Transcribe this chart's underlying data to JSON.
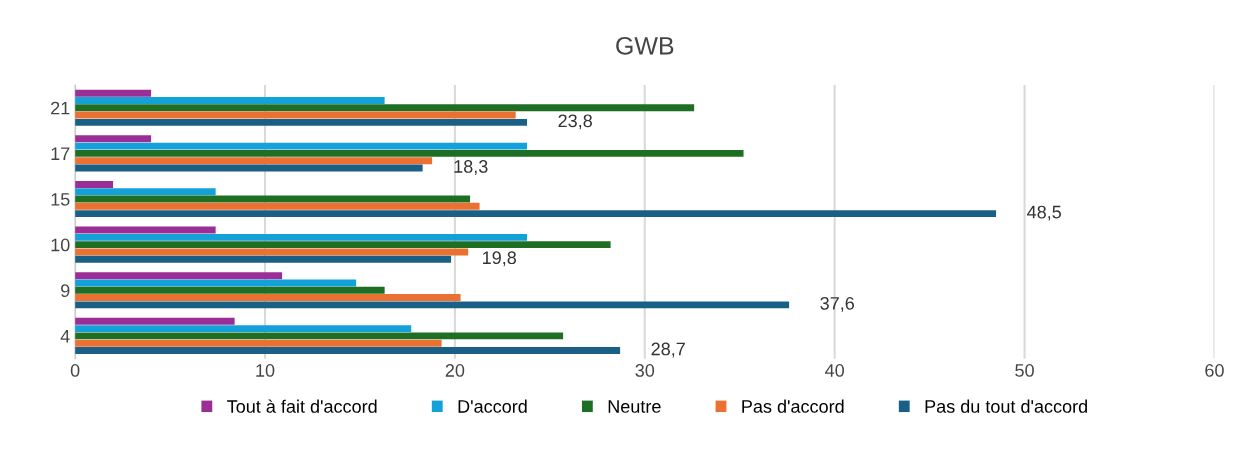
{
  "chart_data": {
    "type": "bar",
    "orientation": "horizontal",
    "title": "GWB",
    "categories": [
      "21",
      "17",
      "15",
      "10",
      "9",
      "4"
    ],
    "series": [
      {
        "name": "Tout à fait d'accord",
        "color": "#9b2d96",
        "values": [
          4.0,
          4.0,
          2.0,
          7.4,
          10.9,
          8.4
        ]
      },
      {
        "name": "D'accord",
        "color": "#14a0d8",
        "values": [
          16.3,
          23.8,
          7.4,
          23.8,
          14.8,
          17.7
        ]
      },
      {
        "name": "Neutre",
        "color": "#1e6e23",
        "values": [
          32.6,
          35.2,
          20.8,
          28.2,
          16.3,
          25.7
        ]
      },
      {
        "name": "Pas d'accord",
        "color": "#ea7132",
        "values": [
          23.2,
          18.8,
          21.3,
          20.7,
          20.3,
          19.3
        ]
      },
      {
        "name": "Pas du tout d'accord",
        "color": "#1a5f85",
        "values": [
          23.8,
          18.3,
          48.5,
          19.8,
          37.6,
          28.7
        ],
        "value_labels": [
          "23,8",
          "18,3",
          "48,5",
          "19,8",
          "37,6",
          "28,7"
        ]
      }
    ],
    "xlim": [
      0,
      60
    ],
    "xticks": [
      0,
      10,
      20,
      30,
      40,
      50,
      60
    ],
    "grid": "x",
    "legend": "bottom"
  }
}
